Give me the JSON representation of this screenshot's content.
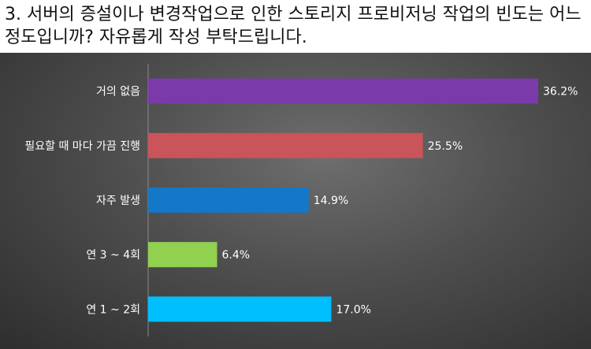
{
  "question": "3. 서버의 증설이나 변경작업으로 인한 스토리지 프로비저닝 작업의 빈도는 어느정도입니까? 자유롭게 작성 부탁드립니다.",
  "chart_data": {
    "type": "bar",
    "orientation": "horizontal",
    "categories": [
      "거의 없음",
      "필요할 때 마다 가끔 진행",
      "자주 발생",
      "연 3 ~ 4회",
      "연 1 ~ 2회"
    ],
    "values": [
      36.2,
      25.5,
      14.9,
      6.4,
      17.0
    ],
    "value_labels": [
      "36.2%",
      "25.5%",
      "14.9%",
      "6.4%",
      "17.0%"
    ],
    "colors": [
      "#7b3aaa",
      "#c9545a",
      "#1577c8",
      "#92d050",
      "#00bfff"
    ],
    "title": "",
    "xlabel": "",
    "ylabel": "",
    "xlim": [
      0,
      36.2
    ],
    "grid": false,
    "legend": "none"
  }
}
